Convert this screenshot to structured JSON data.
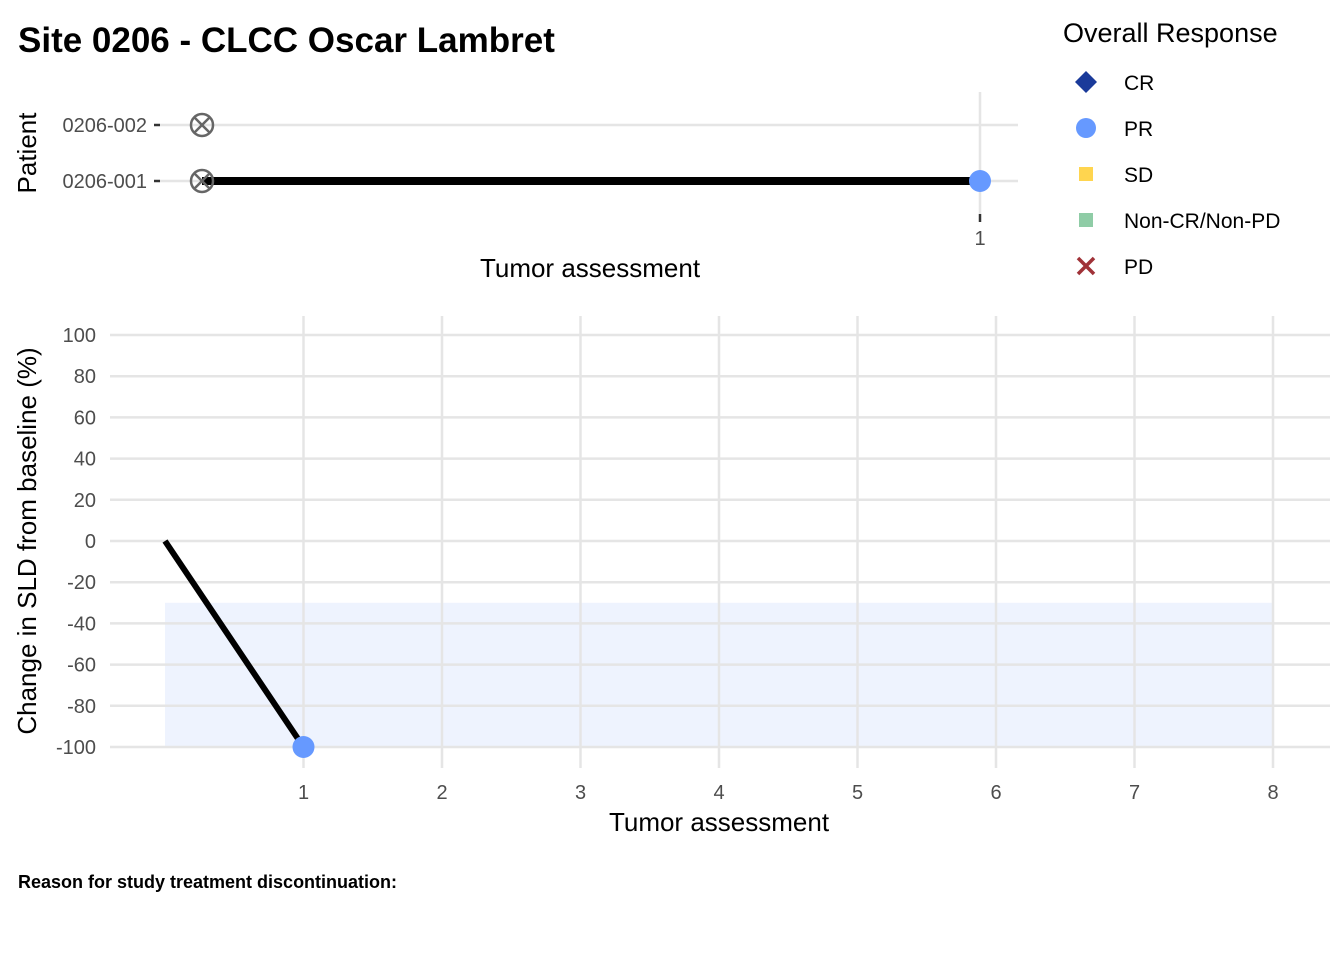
{
  "title": "Site 0206 - CLCC Oscar Lambret",
  "colors": {
    "CR": "#1a3a9a",
    "PR": "#6699ff",
    "SD": "#ffd54f",
    "Non-CR/Non-PD": "#8fcca6",
    "PD": "#a03238",
    "line": "#000000",
    "band": "#eef3fe",
    "baseline_marker": "#666666",
    "grid": "#e5e5e5"
  },
  "legend": {
    "title": "Overall Response",
    "items": [
      {
        "label": "CR",
        "shape": "diamond",
        "color": "#1a3a9a"
      },
      {
        "label": "PR",
        "shape": "circle",
        "color": "#6699ff"
      },
      {
        "label": "SD",
        "shape": "square",
        "color": "#ffd54f"
      },
      {
        "label": "Non-CR/Non-PD",
        "shape": "square",
        "color": "#8fcca6"
      },
      {
        "label": "PD",
        "shape": "cross",
        "color": "#a03238"
      }
    ]
  },
  "caption": "Reason for study treatment discontinuation:",
  "chart_data": [
    {
      "type": "swimmer",
      "xlabel": "Tumor assessment",
      "ylabel": "Patient",
      "categories": [
        "0206-001",
        "0206-002"
      ],
      "xticks": [
        "1"
      ],
      "xlim": [
        0,
        1
      ],
      "series": [
        {
          "patient": "0206-001",
          "baseline_marker": "circle-cross",
          "bar_start": 0,
          "bar_end": 1,
          "assessments": [
            {
              "x": 1,
              "response": "PR"
            }
          ]
        },
        {
          "patient": "0206-002",
          "baseline_marker": "circle-cross",
          "bar_start": 0,
          "bar_end": 0,
          "assessments": []
        }
      ]
    },
    {
      "type": "line",
      "xlabel": "Tumor assessment",
      "ylabel": "Change in SLD from baseline (%)",
      "xticks": [
        1,
        2,
        3,
        4,
        5,
        6,
        7,
        8
      ],
      "yticks": [
        100,
        80,
        60,
        40,
        20,
        0,
        -20,
        -40,
        -60,
        -80,
        -100
      ],
      "xlim": [
        0,
        8
      ],
      "ylim": [
        -100,
        100
      ],
      "shaded_band": {
        "x": [
          0,
          8
        ],
        "y": [
          -100,
          -30
        ]
      },
      "series": [
        {
          "x": [
            0,
            1
          ],
          "y": [
            0,
            -100
          ],
          "responses": [
            null,
            "PR"
          ]
        }
      ]
    }
  ]
}
